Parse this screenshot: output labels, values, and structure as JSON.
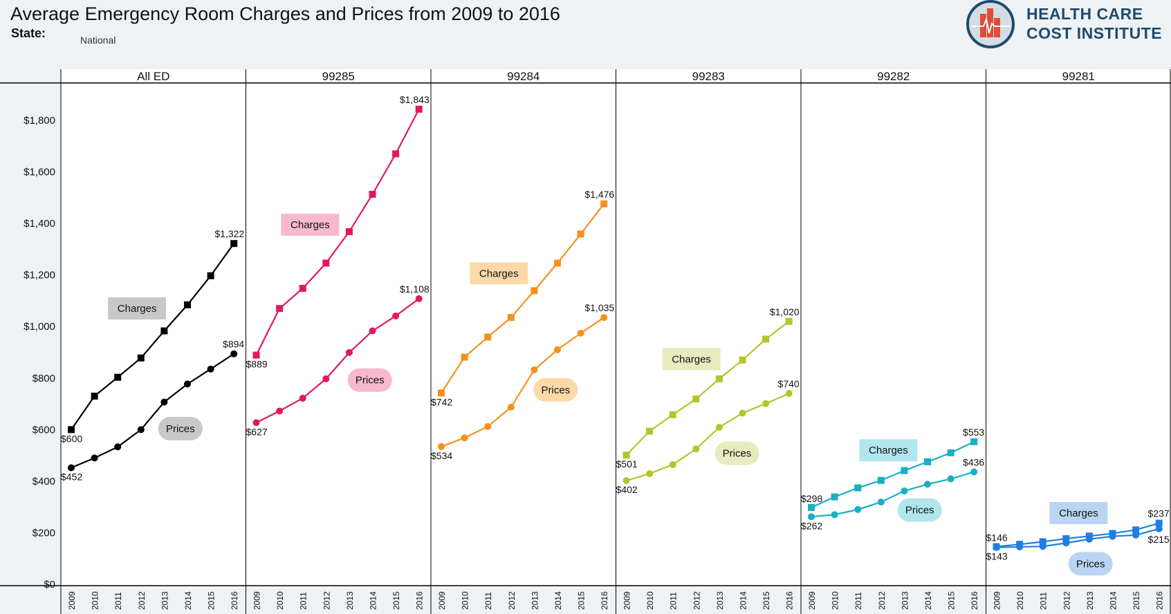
{
  "header": {
    "title": "Average Emergency Room Charges and Prices from 2009 to 2016",
    "state_label": "State:",
    "state_value": "National",
    "logo_line1": "HEALTH CARE",
    "logo_line2": "COST INSTITUTE"
  },
  "chart_data": {
    "type": "line",
    "title": "Average Emergency Room Charges and Prices from 2009 to 2016",
    "x": [
      "2009",
      "2010",
      "2011",
      "2012",
      "2013",
      "2014",
      "2015",
      "2016"
    ],
    "y_ticks": [
      "$0",
      "$200",
      "$400",
      "$600",
      "$800",
      "$1,000",
      "$1,200",
      "$1,400",
      "$1,600",
      "$1,800"
    ],
    "ylim": [
      0,
      1900
    ],
    "grid": false,
    "panels": [
      {
        "name": "All ED",
        "color": "#000000",
        "light": "#c8c8c8",
        "series": [
          {
            "name": "Charges",
            "values": [
              600,
              730,
              803,
              878,
              983,
              1084,
              1197,
              1322
            ]
          },
          {
            "name": "Prices",
            "values": [
              452,
              490,
              533,
              600,
              707,
              777,
              835,
              894
            ]
          }
        ],
        "labels": {
          "charges_first": "$600",
          "charges_last": "$1,322",
          "prices_first": "$452",
          "prices_last": "$894"
        }
      },
      {
        "name": "99285",
        "color": "#e2185f",
        "light": "#f7b9cd",
        "series": [
          {
            "name": "Charges",
            "values": [
              889,
              1070,
              1148,
              1246,
              1368,
              1513,
              1670,
              1843
            ]
          },
          {
            "name": "Prices",
            "values": [
              627,
              672,
              722,
              797,
              899,
              983,
              1041,
              1108
            ]
          }
        ],
        "labels": {
          "charges_first": "$889",
          "charges_last": "$1,843",
          "prices_first": "$627",
          "prices_last": "$1,108"
        }
      },
      {
        "name": "99284",
        "color": "#f7901e",
        "light": "#fdd9aa",
        "series": [
          {
            "name": "Charges",
            "values": [
              742,
              881,
              959,
              1035,
              1139,
              1246,
              1359,
              1476
            ]
          },
          {
            "name": "Prices",
            "values": [
              534,
              568,
              612,
              687,
              832,
              910,
              974,
              1035
            ]
          }
        ],
        "labels": {
          "charges_first": "$742",
          "charges_last": "$1,476",
          "prices_first": "$534",
          "prices_last": "$1,035"
        }
      },
      {
        "name": "99283",
        "color": "#b5c42a",
        "light": "#e8ebc0",
        "series": [
          {
            "name": "Charges",
            "values": [
              501,
              594,
              658,
              719,
              797,
              870,
              951,
              1020
            ]
          },
          {
            "name": "Prices",
            "values": [
              402,
              429,
              464,
              525,
              609,
              664,
              701,
              740
            ]
          }
        ],
        "labels": {
          "charges_first": "$501",
          "charges_last": "$1,020",
          "prices_first": "$402",
          "prices_last": "$740"
        }
      },
      {
        "name": "99282",
        "color": "#17b0c4",
        "light": "#b1e6ee",
        "series": [
          {
            "name": "Charges",
            "values": [
              298,
              339,
              374,
              403,
              441,
              475,
              510,
              553
            ]
          },
          {
            "name": "Prices",
            "values": [
              262,
              270,
              290,
              319,
              362,
              388,
              409,
              436
            ]
          }
        ],
        "labels": {
          "charges_first": "$298",
          "charges_last": "$553",
          "prices_first": "$262",
          "prices_last": "$436"
        }
      },
      {
        "name": "99281",
        "color": "#1f7fe0",
        "light": "#b9d5f3",
        "series": [
          {
            "name": "Charges",
            "values": [
              146,
              155,
              165,
              177,
              187,
              197,
              211,
              237
            ]
          },
          {
            "name": "Prices",
            "values": [
              143,
              145,
              147,
              160,
              175,
              186,
              191,
              215
            ]
          }
        ],
        "labels": {
          "charges_first": "$146",
          "charges_last": "$237",
          "prices_first": "$143",
          "prices_last": "$215"
        }
      }
    ],
    "legend_labels": {
      "charges": "Charges",
      "prices": "Prices"
    }
  }
}
